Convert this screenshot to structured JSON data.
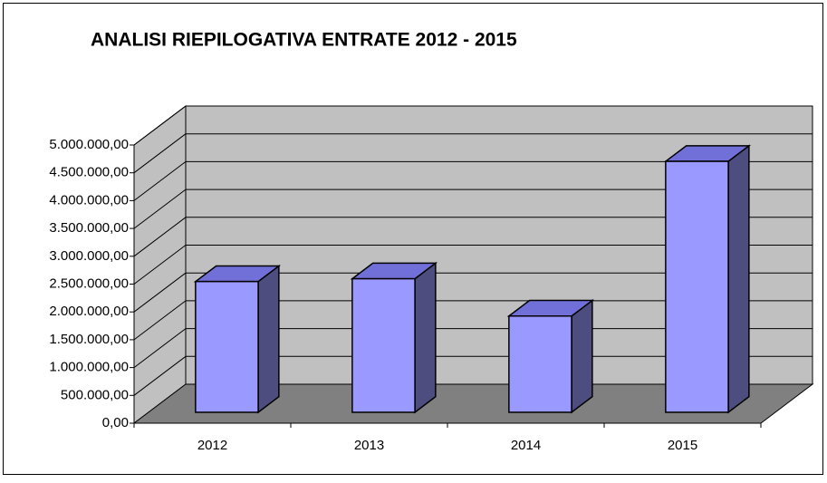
{
  "chart_data": {
    "type": "bar3d",
    "title": "ANALISI RIEPILOGATIVA ENTRATE 2012 - 2015",
    "categories": [
      "2012",
      "2013",
      "2014",
      "2015"
    ],
    "values": [
      2350000,
      2400000,
      1730000,
      4510000
    ],
    "color": "#9999ff",
    "ylim": [
      0,
      5000000
    ],
    "yticks": [
      {
        "value": 0,
        "label": "0,00"
      },
      {
        "value": 500000,
        "label": "500.000,00"
      },
      {
        "value": 1000000,
        "label": "1.000.000,00"
      },
      {
        "value": 1500000,
        "label": "1.500.000,00"
      },
      {
        "value": 2000000,
        "label": "2.000.000,00"
      },
      {
        "value": 2500000,
        "label": "2.500.000,00"
      },
      {
        "value": 3000000,
        "label": "3.000.000,00"
      },
      {
        "value": 3500000,
        "label": "3.500.000,00"
      },
      {
        "value": 4000000,
        "label": "4.000.000,00"
      },
      {
        "value": 4500000,
        "label": "4.500.000,00"
      },
      {
        "value": 5000000,
        "label": "5.000.000,00"
      }
    ],
    "grid": true
  }
}
